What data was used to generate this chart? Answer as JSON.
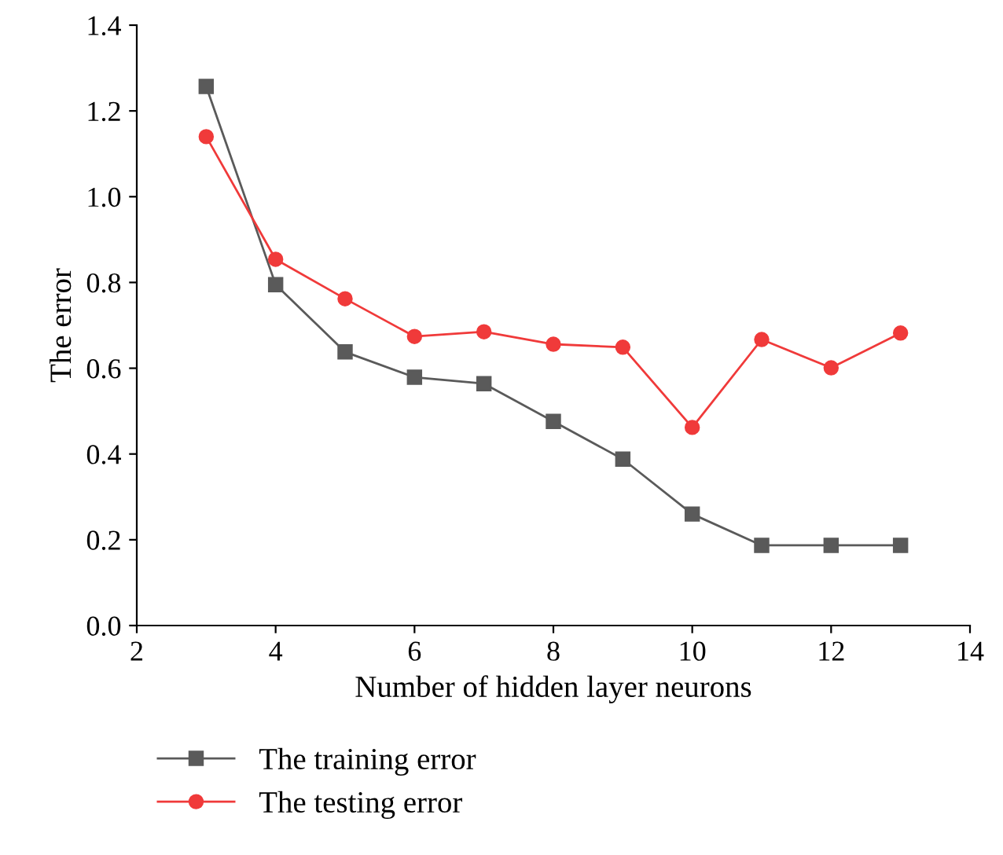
{
  "chart_data": {
    "type": "line",
    "xlabel": "Number of hidden layer neurons",
    "ylabel": "The error",
    "x": [
      3,
      4,
      5,
      6,
      7,
      8,
      9,
      10,
      11,
      12,
      13
    ],
    "series": [
      {
        "name": "The training error",
        "color": "#5a5a5a",
        "marker": "square",
        "values": [
          1.257,
          0.795,
          0.638,
          0.579,
          0.564,
          0.476,
          0.388,
          0.26,
          0.187,
          0.187,
          0.187
        ]
      },
      {
        "name": "The testing error",
        "color": "#f03a3a",
        "marker": "circle",
        "values": [
          1.14,
          0.854,
          0.762,
          0.674,
          0.685,
          0.656,
          0.649,
          0.462,
          0.667,
          0.601,
          0.682
        ]
      }
    ],
    "xlim": [
      2,
      14
    ],
    "xticks": [
      2,
      4,
      6,
      8,
      10,
      12,
      14
    ],
    "ylim": [
      0,
      1.4
    ],
    "yticks": [
      {
        "value": 0,
        "label": "0.0"
      },
      0.2,
      0.4,
      0.6,
      0.8,
      {
        "value": 1,
        "label": "1.0"
      },
      1.2,
      1.4
    ],
    "grid": false,
    "legend": "bottom left",
    "line_style": "solid"
  }
}
